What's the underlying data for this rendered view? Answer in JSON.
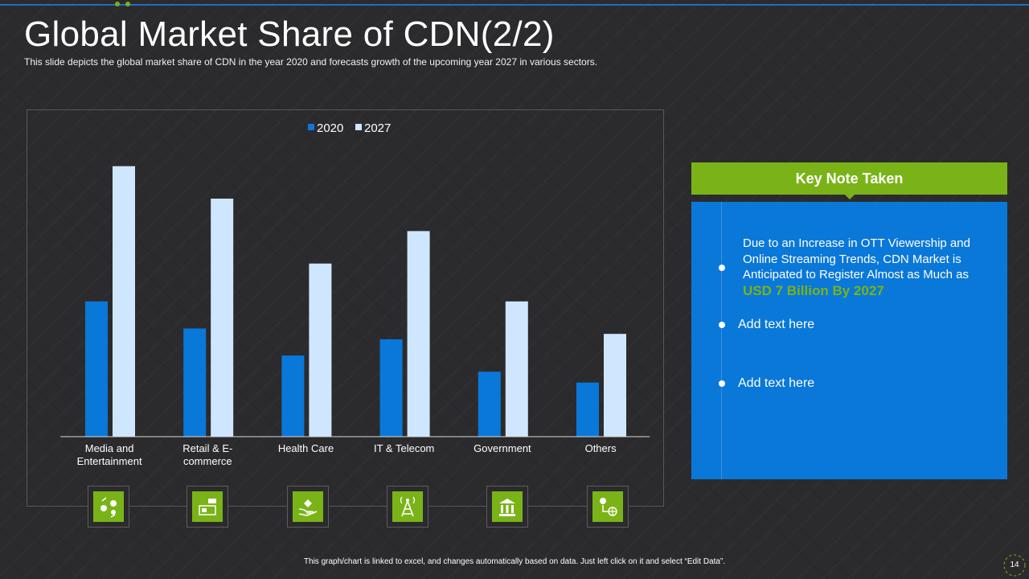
{
  "slide": {
    "title": "Global Market Share of CDN(2/2)",
    "subtitle": "This slide depicts the global market share of CDN in the year 2020 and forecasts growth of the upcoming year 2027 in various  sectors.",
    "footer": "This graph/chart is linked to excel, and changes automatically based on data. Just left click on it and select “Edit Data”.",
    "page_number": "14"
  },
  "colors": {
    "series_2020": "#0a78d9",
    "series_2027": "#cfe6ff",
    "accent": "#7ab317",
    "panel": "#0a78d9"
  },
  "chart_data": {
    "type": "bar",
    "categories": [
      "Media and Entertainment",
      "Retail & E-commerce",
      "Health Care",
      "IT & Telecom",
      "Government",
      "Others"
    ],
    "category_lines": [
      [
        "Media and",
        "Entertainment"
      ],
      [
        "Retail & E-",
        "commerce"
      ],
      [
        "Health Care"
      ],
      [
        "IT & Telecom"
      ],
      [
        "Government"
      ],
      [
        "Others"
      ]
    ],
    "series": [
      {
        "name": "2020",
        "values": [
          5.0,
          4.0,
          3.0,
          3.6,
          2.4,
          2.0
        ]
      },
      {
        "name": "2027",
        "values": [
          10.0,
          8.8,
          6.4,
          7.6,
          5.0,
          3.8
        ]
      }
    ],
    "ylim": [
      0,
      11
    ],
    "legend": "top-center",
    "grid": false
  },
  "sector_icons": [
    "people-exchange-icon",
    "shop-icon",
    "hand-heart-icon",
    "tower-icon",
    "government-building-icon",
    "dollar-globe-icon"
  ],
  "key_note": {
    "title": "Key Note Taken",
    "main_text": "Due to an Increase in OTT Viewership and Online Streaming Trends, CDN Market is Anticipated to Register Almost as Much  as",
    "highlight": "USD 7 Billion By 2027",
    "items": [
      "Add text here",
      "Add text here"
    ]
  }
}
